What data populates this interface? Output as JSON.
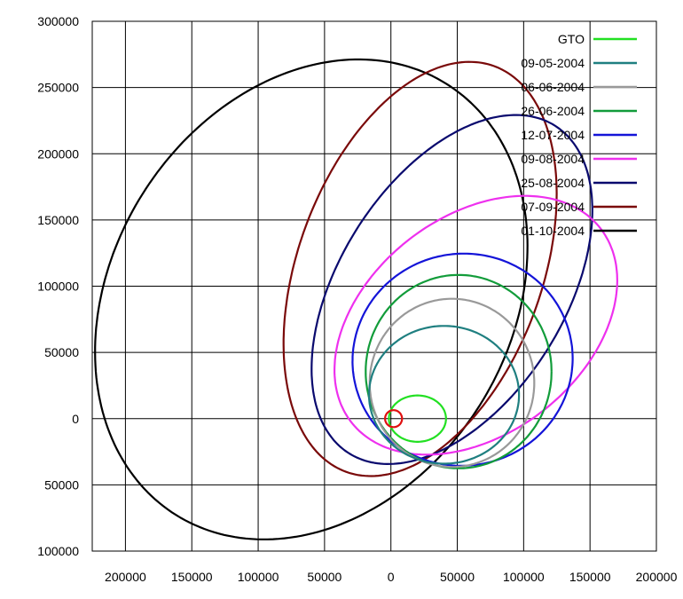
{
  "chart_data": {
    "type": "line",
    "title": "",
    "xlabel": "",
    "ylabel": "",
    "xlim": [
      -225000,
      200000
    ],
    "ylim": [
      -100000,
      300000
    ],
    "grid": true,
    "legend_position": "top-right",
    "x_ticks": [
      {
        "value": -200000,
        "label": "200000"
      },
      {
        "value": -150000,
        "label": "150000"
      },
      {
        "value": -100000,
        "label": "100000"
      },
      {
        "value": -50000,
        "label": "50000"
      },
      {
        "value": 0,
        "label": "0"
      },
      {
        "value": 50000,
        "label": "50000"
      },
      {
        "value": 100000,
        "label": "100000"
      },
      {
        "value": 150000,
        "label": "150000"
      },
      {
        "value": 200000,
        "label": "200000"
      }
    ],
    "y_ticks": [
      {
        "value": 300000,
        "label": "300000"
      },
      {
        "value": 250000,
        "label": "250000"
      },
      {
        "value": 200000,
        "label": "200000"
      },
      {
        "value": 150000,
        "label": "150000"
      },
      {
        "value": 100000,
        "label": "100000"
      },
      {
        "value": 50000,
        "label": "50000"
      },
      {
        "value": 0,
        "label": "0"
      },
      {
        "value": -50000,
        "label": "50000"
      },
      {
        "value": -100000,
        "label": "100000"
      }
    ],
    "series": [
      {
        "name": "GTO",
        "color": "#22e022",
        "center": [
          20000,
          0
        ],
        "rx": 21500,
        "ry": 17500,
        "tilt_deg": 0
      },
      {
        "name": "09-05-2004",
        "color": "#1f7f80",
        "center": [
          40000,
          18000
        ],
        "rx": 56500,
        "ry": 52000,
        "tilt_deg": 0
      },
      {
        "name": "06-06-2004",
        "color": "#999999",
        "center": [
          46000,
          27000
        ],
        "rx": 62000,
        "ry": 63500,
        "tilt_deg": 0
      },
      {
        "name": "26-06-2004",
        "color": "#129c3a",
        "center": [
          51000,
          35500
        ],
        "rx": 70000,
        "ry": 73000,
        "tilt_deg": 0
      },
      {
        "name": "12-07-2004",
        "color": "#1414d8",
        "center": [
          54000,
          44500
        ],
        "rx": 83000,
        "ry": 80000,
        "tilt_deg": 10
      },
      {
        "name": "09-08-2004",
        "color": "#ee30ee",
        "center": [
          64000,
          70500
        ],
        "rx": 119000,
        "ry": 82000,
        "tilt_deg": 38
      },
      {
        "name": "25-08-2004",
        "color": "#0a0a6e",
        "center": [
          46000,
          97500
        ],
        "rx": 146000,
        "ry": 85000,
        "tilt_deg": 58
      },
      {
        "name": "07-09-2004",
        "color": "#7a0a0a",
        "center": [
          22000,
          113000
        ],
        "rx": 163000,
        "ry": 92000,
        "tilt_deg": 70
      },
      {
        "name": "01-10-2004",
        "color": "#000000",
        "center": [
          -60000,
          90000
        ],
        "rx": 192000,
        "ry": 150000,
        "tilt_deg": 58
      }
    ],
    "annotations": [
      {
        "name": "Earth",
        "color": "#e01010",
        "center": [
          2000,
          0
        ],
        "rx": 6400,
        "ry": 6400
      }
    ]
  }
}
